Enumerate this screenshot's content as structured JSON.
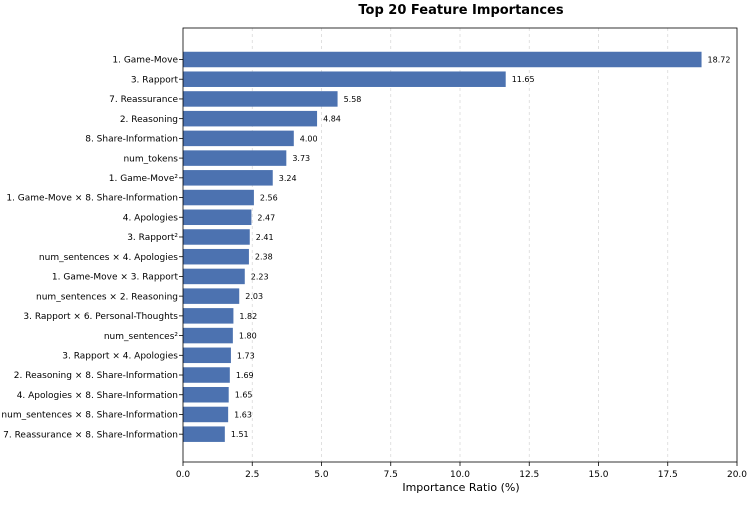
{
  "chart_data": {
    "type": "bar",
    "orientation": "horizontal",
    "title": "Top 20 Feature Importances",
    "xlabel": "Importance Ratio (%)",
    "ylabel": "",
    "xlim": [
      0,
      20
    ],
    "xticks": [
      "0.0",
      "2.5",
      "5.0",
      "7.5",
      "10.0",
      "12.5",
      "15.0",
      "17.5",
      "20.0"
    ],
    "grid": "vertical dashed",
    "bar_color": "#4c72b0",
    "categories": [
      "1. Game-Move",
      "3. Rapport",
      "7. Reassurance",
      "2. Reasoning",
      "8. Share-Information",
      "num_tokens",
      "1. Game-Move²",
      "1. Game-Move × 8. Share-Information",
      "4. Apologies",
      "3. Rapport²",
      "num_sentences × 4. Apologies",
      "1. Game-Move × 3. Rapport",
      "num_sentences × 2. Reasoning",
      "3. Rapport × 6. Personal-Thoughts",
      "num_sentences²",
      "3. Rapport × 4. Apologies",
      "2. Reasoning × 8. Share-Information",
      "4. Apologies × 8. Share-Information",
      "num_sentences × 8. Share-Information",
      "7. Reassurance × 8. Share-Information"
    ],
    "values": [
      18.72,
      11.65,
      5.58,
      4.84,
      4.0,
      3.73,
      3.24,
      2.56,
      2.47,
      2.41,
      2.38,
      2.23,
      2.03,
      1.82,
      1.8,
      1.73,
      1.69,
      1.65,
      1.63,
      1.51
    ],
    "value_labels": [
      "18.72",
      "11.65",
      "5.58",
      "4.84",
      "4.00",
      "3.73",
      "3.24",
      "2.56",
      "2.47",
      "2.41",
      "2.38",
      "2.23",
      "2.03",
      "1.82",
      "1.80",
      "1.73",
      "1.69",
      "1.65",
      "1.63",
      "1.51"
    ]
  }
}
